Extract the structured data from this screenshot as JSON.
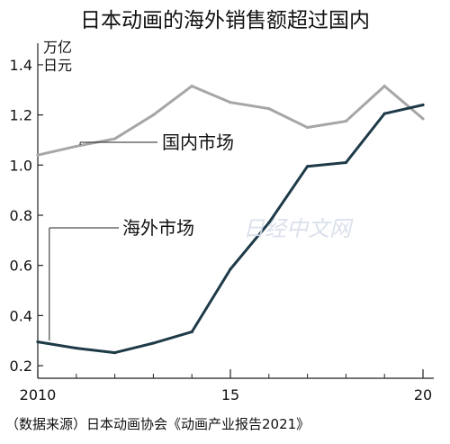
{
  "chart_data": {
    "type": "line",
    "title": "日本动画的海外销售额超过国内",
    "ylabel": "万亿日元",
    "ylabel_lines": [
      "万亿",
      "日元"
    ],
    "source": "（数据来源）日本动画协会《动画产业报告2021》",
    "watermark": "日经中文网",
    "x": [
      2010,
      2011,
      2012,
      2013,
      2014,
      2015,
      2016,
      2017,
      2018,
      2019,
      2020
    ],
    "xticks": [
      2010,
      2015,
      2020
    ],
    "xtick_labels": [
      "2010",
      "15",
      "20"
    ],
    "xlim": [
      2010,
      2020
    ],
    "ylim": [
      0.15,
      1.45
    ],
    "yticks": [
      0.2,
      0.4,
      0.6,
      0.8,
      1.0,
      1.2,
      1.4
    ],
    "ytick_labels": [
      "0.2",
      "0.4",
      "0.6",
      "0.8",
      "1.0",
      "1.2",
      "1.4"
    ],
    "grid": false,
    "series": [
      {
        "name": "国内市场",
        "color": "#a6a6a6",
        "values": [
          1.04,
          1.075,
          1.105,
          1.2,
          1.315,
          1.25,
          1.225,
          1.15,
          1.175,
          1.315,
          1.185
        ]
      },
      {
        "name": "海外市场",
        "color": "#1e3a48",
        "values": [
          0.295,
          0.27,
          0.252,
          0.29,
          0.335,
          0.585,
          0.77,
          0.995,
          1.01,
          1.205,
          1.24
        ]
      }
    ]
  }
}
